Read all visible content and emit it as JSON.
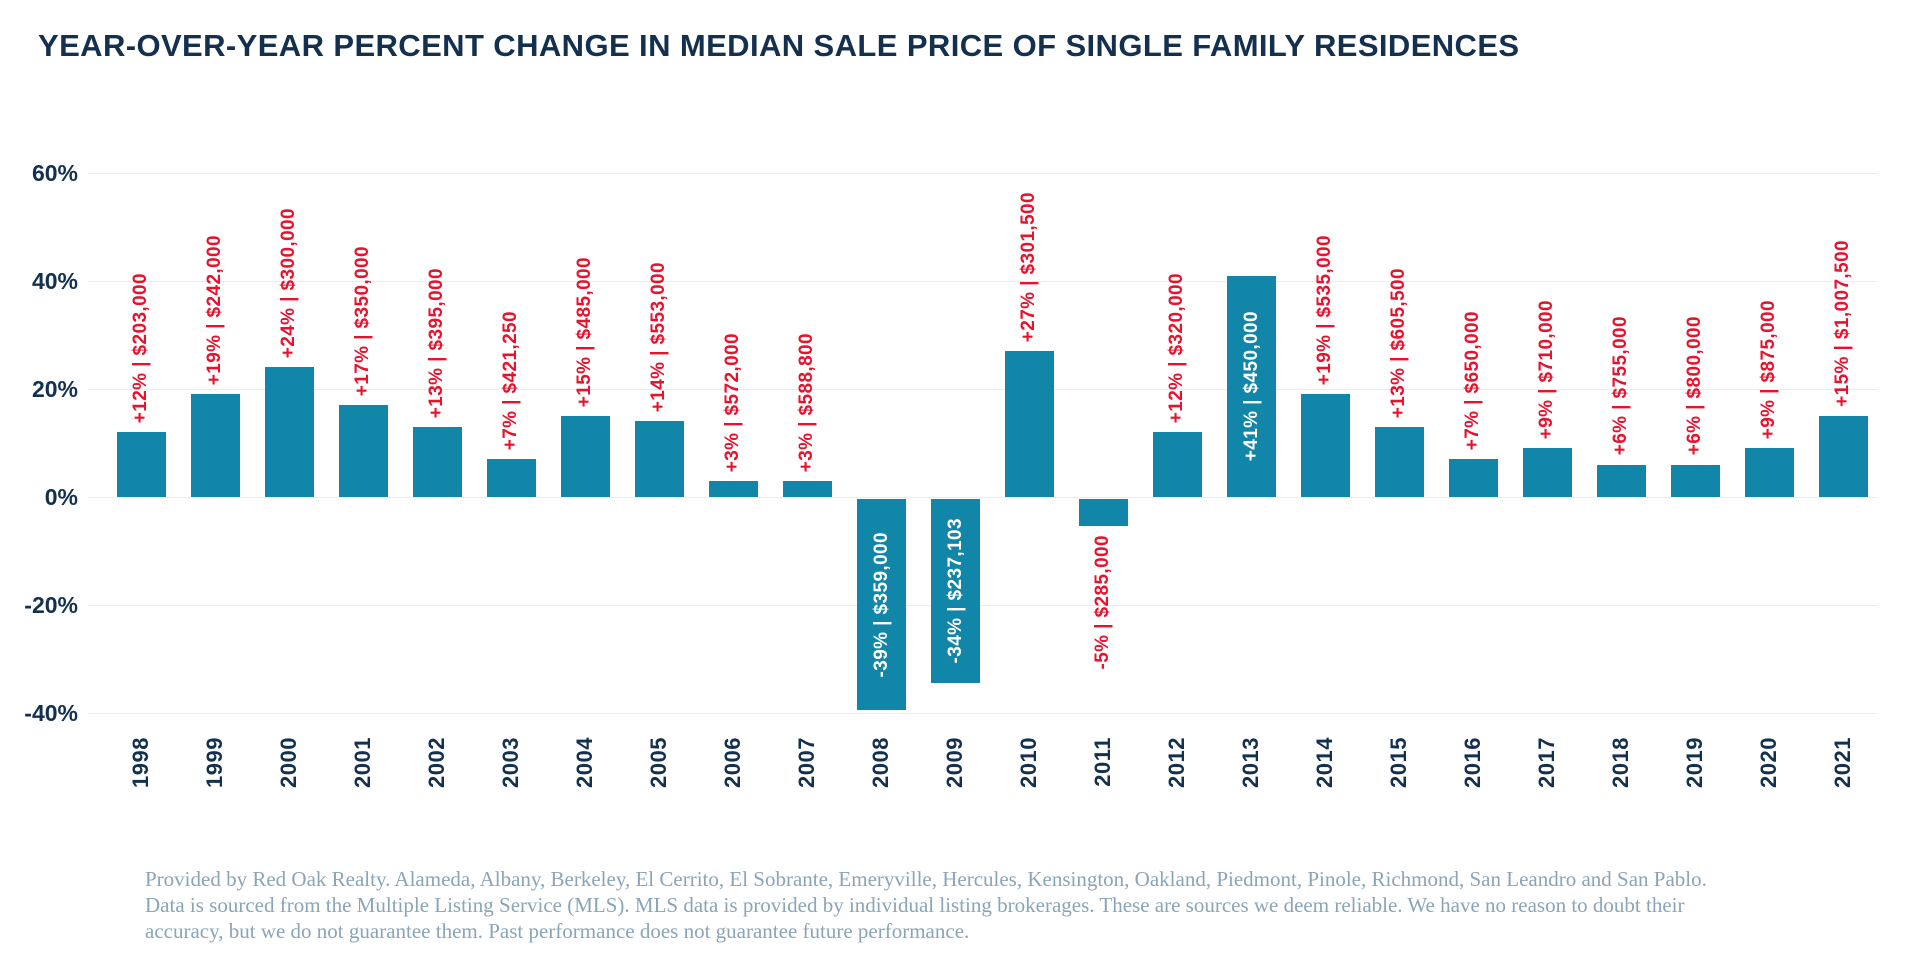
{
  "title": "YEAR-OVER-YEAR PERCENT CHANGE IN MEDIAN SALE PRICE OF SINGLE FAMILY RESIDENCES",
  "chart_data": {
    "type": "bar",
    "title": "YEAR-OVER-YEAR PERCENT CHANGE IN MEDIAN SALE PRICE OF SINGLE FAMILY RESIDENCES",
    "categories": [
      "1998",
      "1999",
      "2000",
      "2001",
      "2002",
      "2003",
      "2004",
      "2005",
      "2006",
      "2007",
      "2008",
      "2009",
      "2010",
      "2011",
      "2012",
      "2013",
      "2014",
      "2015",
      "2016",
      "2017",
      "2018",
      "2019",
      "2020",
      "2021"
    ],
    "values": [
      12,
      19,
      24,
      17,
      13,
      7,
      15,
      14,
      3,
      3,
      -39,
      -34,
      27,
      -5,
      12,
      41,
      19,
      13,
      7,
      9,
      6,
      6,
      9,
      15
    ],
    "prices": [
      "$203,000",
      "$242,000",
      "$300,000",
      "$350,000",
      "$395,000",
      "$421,250",
      "$485,000",
      "$553,000",
      "$572,000",
      "$588,800",
      "$359,000",
      "$237,103",
      "$301,500",
      "$285,000",
      "$320,000",
      "$450,000",
      "$535,000",
      "$605,500",
      "$650,000",
      "$710,000",
      "$755,000",
      "$800,000",
      "$875,000",
      "$1,007,500"
    ],
    "bar_labels": [
      "+12% | $203,000",
      "+19% | $242,000",
      "+24% | $300,000",
      "+17% | $350,000",
      "+13% | $395,000",
      "+7% | $421,250",
      "+15% | $485,000",
      "+14% | $553,000",
      "+3% | $572,000",
      "+3% | $588,800",
      "-39% | $359,000",
      "-34% | $237,103",
      "+27% | $301,500",
      "-5% | $285,000",
      "+12% | $320,000",
      "+41% | $450,000",
      "+19% | $535,000",
      "+13% | $605,500",
      "+7% | $650,000",
      "+9% | $710,000",
      "+6% | $755,000",
      "+6% | $800,000",
      "+9% | $875,000",
      "+15% | $1,007,500"
    ],
    "label_placement": [
      "above",
      "above",
      "above",
      "above",
      "above",
      "above",
      "above",
      "above",
      "above",
      "above",
      "inside",
      "inside",
      "above",
      "below",
      "above",
      "inside",
      "above",
      "above",
      "above",
      "above",
      "above",
      "above",
      "above",
      "above"
    ],
    "y_ticks": [
      {
        "label": "60%",
        "value": 60
      },
      {
        "label": "40%",
        "value": 40
      },
      {
        "label": "20%",
        "value": 20
      },
      {
        "label": "0%",
        "value": 0
      },
      {
        "label": "-20%",
        "value": -20
      },
      {
        "label": "-40%",
        "value": -40
      }
    ],
    "ylim": [
      -40,
      60
    ],
    "grid": "horizontal",
    "legend": "none",
    "colors": {
      "bar": "#1186a9",
      "label_positive": "#e8122d",
      "label_inside": "#ffffff",
      "axis_text": "#14304f",
      "gridline": "#ececec",
      "footer_text": "#8aa4b8"
    }
  },
  "footer": {
    "lines": [
      "Provided by Red Oak Realty. Alameda, Albany, Berkeley, El Cerrito, El Sobrante, Emeryville, Hercules, Kensington, Oakland, Piedmont, Pinole, Richmond, San Leandro and San Pablo.",
      "Data is sourced from the Multiple Listing Service (MLS). MLS data is provided by individual listing brokerages. These are sources we deem reliable. We have no reason to doubt their",
      "accuracy, but we do not guarantee them. Past performance does not guarantee future performance."
    ]
  }
}
